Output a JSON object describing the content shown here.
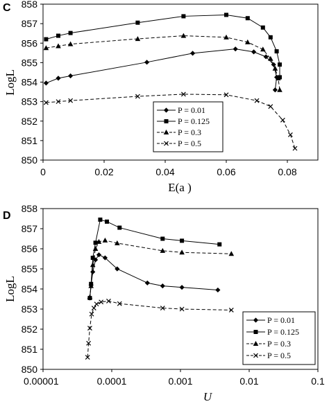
{
  "chart_data": [
    {
      "panel": "C",
      "type": "line",
      "xlabel": "E(a )",
      "ylabel": "LogL",
      "xlim": [
        0,
        0.09
      ],
      "ylim": [
        850,
        858
      ],
      "xticks": [
        "0",
        "0.02",
        "0.04",
        "0.06",
        "0.08"
      ],
      "xtick_values": [
        0,
        0.02,
        0.04,
        0.06,
        0.08
      ],
      "yticks": [
        "850",
        "851",
        "852",
        "853",
        "854",
        "855",
        "856",
        "857",
        "858"
      ],
      "legend_position": "bottom-right",
      "series": [
        {
          "name": "P = 0.01",
          "line": "solid",
          "marker": "diamond",
          "x": [
            0.001,
            0.005,
            0.009,
            0.034,
            0.049,
            0.063,
            0.069,
            0.073,
            0.0755,
            0.0765,
            0.076
          ],
          "y": [
            853.95,
            854.2,
            854.32,
            855.02,
            855.48,
            855.7,
            855.55,
            855.3,
            854.9,
            854.25,
            853.6
          ]
        },
        {
          "name": "P = 0.125",
          "line": "solid",
          "marker": "square",
          "x": [
            0.001,
            0.005,
            0.009,
            0.031,
            0.046,
            0.06,
            0.067,
            0.072,
            0.0745,
            0.0765,
            0.0775,
            0.0775
          ],
          "y": [
            856.2,
            856.38,
            856.52,
            857.05,
            857.38,
            857.45,
            857.28,
            856.8,
            856.3,
            855.58,
            854.9,
            854.25
          ]
        },
        {
          "name": "P = 0.3",
          "line": "dashed",
          "marker": "triangle",
          "x": [
            0.001,
            0.005,
            0.009,
            0.031,
            0.046,
            0.06,
            0.067,
            0.072,
            0.0745,
            0.076,
            0.077,
            0.0775
          ],
          "y": [
            855.75,
            855.85,
            855.95,
            856.22,
            856.38,
            856.3,
            856.05,
            855.68,
            855.2,
            854.7,
            854.2,
            853.6
          ]
        },
        {
          "name": "P = 0.5",
          "line": "dashed",
          "marker": "x",
          "x": [
            0.001,
            0.005,
            0.009,
            0.031,
            0.046,
            0.06,
            0.07,
            0.0745,
            0.0785,
            0.081,
            0.0825
          ],
          "y": [
            852.95,
            853.0,
            853.05,
            853.27,
            853.38,
            853.35,
            853.05,
            852.75,
            852.05,
            851.3,
            850.6
          ]
        }
      ]
    },
    {
      "panel": "D",
      "type": "line",
      "xlabel": "U",
      "ylabel": "LogL",
      "xscale": "log",
      "xlim": [
        1e-05,
        0.1
      ],
      "ylim": [
        850,
        858
      ],
      "xticks": [
        "0.00001",
        "0.0001",
        "0.001",
        "0.01",
        "0.1"
      ],
      "xtick_values": [
        1e-05,
        0.0001,
        0.001,
        0.01,
        0.1
      ],
      "yticks": [
        "850",
        "851",
        "852",
        "853",
        "854",
        "855",
        "856",
        "857",
        "858"
      ],
      "legend_position": "bottom-right",
      "series": [
        {
          "name": "P = 0.01",
          "line": "solid",
          "marker": "diamond",
          "x": [
            4.8e-05,
            5e-05,
            5.3e-05,
            5.8e-05,
            6.5e-05,
            8e-05,
            0.00012,
            0.00033,
            0.00055,
            0.00105,
            0.0035
          ],
          "y": [
            853.55,
            854.2,
            854.85,
            855.45,
            855.7,
            855.55,
            855.0,
            854.3,
            854.15,
            854.08,
            853.95
          ]
        },
        {
          "name": "P = 0.125",
          "line": "solid",
          "marker": "square",
          "x": [
            4.8e-05,
            5e-05,
            5.3e-05,
            5.8e-05,
            6.8e-05,
            8.5e-05,
            0.00013,
            0.00055,
            0.00105,
            0.0037
          ],
          "y": [
            853.55,
            854.25,
            855.55,
            856.3,
            857.45,
            857.35,
            857.05,
            856.5,
            856.4,
            856.22
          ]
        },
        {
          "name": "P = 0.3",
          "line": "dashed",
          "marker": "triangle",
          "x": [
            4.8e-05,
            5e-05,
            5.3e-05,
            5.8e-05,
            6.5e-05,
            8e-05,
            0.00012,
            0.00055,
            0.00105,
            0.0055
          ],
          "y": [
            853.6,
            854.15,
            855.2,
            856.0,
            856.35,
            856.42,
            856.28,
            855.9,
            855.82,
            855.75
          ]
        },
        {
          "name": "P = 0.5",
          "line": "dashed",
          "marker": "x",
          "x": [
            4.45e-05,
            4.6e-05,
            4.8e-05,
            5.1e-05,
            5.5e-05,
            6e-05,
            7e-05,
            9e-05,
            0.00013,
            0.00055,
            0.00105,
            0.0055
          ],
          "y": [
            850.6,
            851.3,
            852.05,
            852.75,
            853.05,
            853.25,
            853.35,
            853.4,
            853.27,
            853.05,
            853.0,
            852.95
          ]
        }
      ]
    }
  ]
}
